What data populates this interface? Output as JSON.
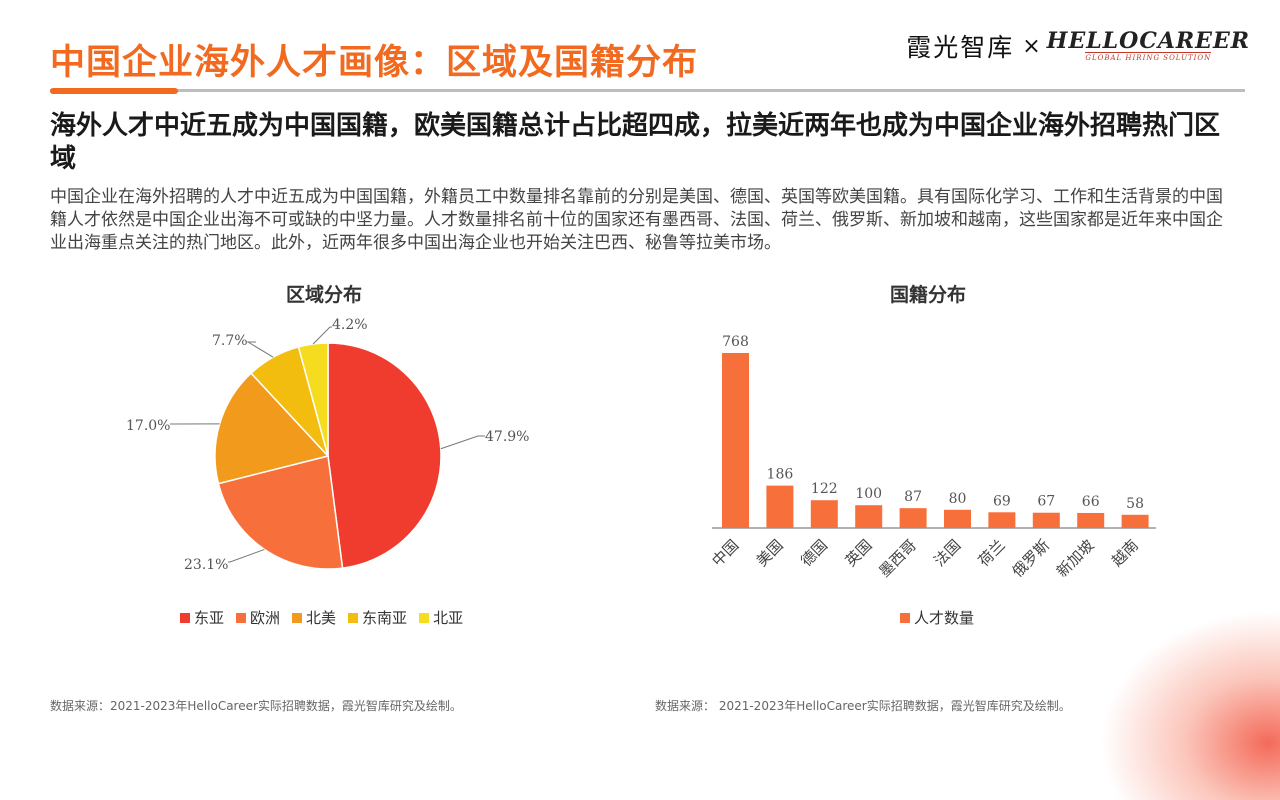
{
  "page": {
    "title": "中国企业海外人才画像：区域及国籍分布",
    "headline": "海外人才中近五成为中国国籍，欧美国籍总计占比超四成，拉美近两年也成为中国企业海外招聘热门区域",
    "paragraph": "中国企业在海外招聘的人才中近五成为中国国籍，外籍员工中数量排名靠前的分别是美国、德国、英国等欧美国籍。具有国际化学习、工作和生活背景的中国籍人才依然是中国企业出海不可或缺的中坚力量。人才数量排名前十位的国家还有墨西哥、法国、荷兰、俄罗斯、新加坡和越南，这些国家都是近年来中国企业出海重点关注的热门地区。此外，近两年很多中国出海企业也开始关注巴西、秘鲁等拉美市场。",
    "source_left": "数据来源：2021-2023年HelloCareer实际招聘数据，霞光智库研究及绘制。",
    "source_right": "数据来源：  2021-2023年HelloCareer实际招聘数据，霞光智库研究及绘制。"
  },
  "brand": {
    "cn": "霞光智库",
    "x": "×",
    "en": "HELLOCAREER",
    "en_sub": "GLOBAL HIRING SOLUTION"
  },
  "chart_data": [
    {
      "type": "pie",
      "title": "区域分布",
      "categories": [
        "东亚",
        "欧洲",
        "北美",
        "东南亚",
        "北亚"
      ],
      "values": [
        47.9,
        23.1,
        17.0,
        7.7,
        4.2
      ],
      "labels": [
        "47.9%",
        "23.1%",
        "17.0%",
        "7.7%",
        "4.2%"
      ],
      "colors": [
        "#f03c2e",
        "#f7703b",
        "#f29a1b",
        "#f2bd0f",
        "#f5dc1e"
      ],
      "legend": "bottom"
    },
    {
      "type": "bar",
      "title": "国籍分布",
      "categories": [
        "中国",
        "美国",
        "德国",
        "英国",
        "墨西哥",
        "法国",
        "荷兰",
        "俄罗斯",
        "新加坡",
        "越南"
      ],
      "series": [
        {
          "name": "人才数量",
          "values": [
            768,
            186,
            122,
            100,
            87,
            80,
            69,
            67,
            66,
            58
          ],
          "color": "#f7703b"
        }
      ],
      "legend": "bottom",
      "grid": false
    }
  ]
}
